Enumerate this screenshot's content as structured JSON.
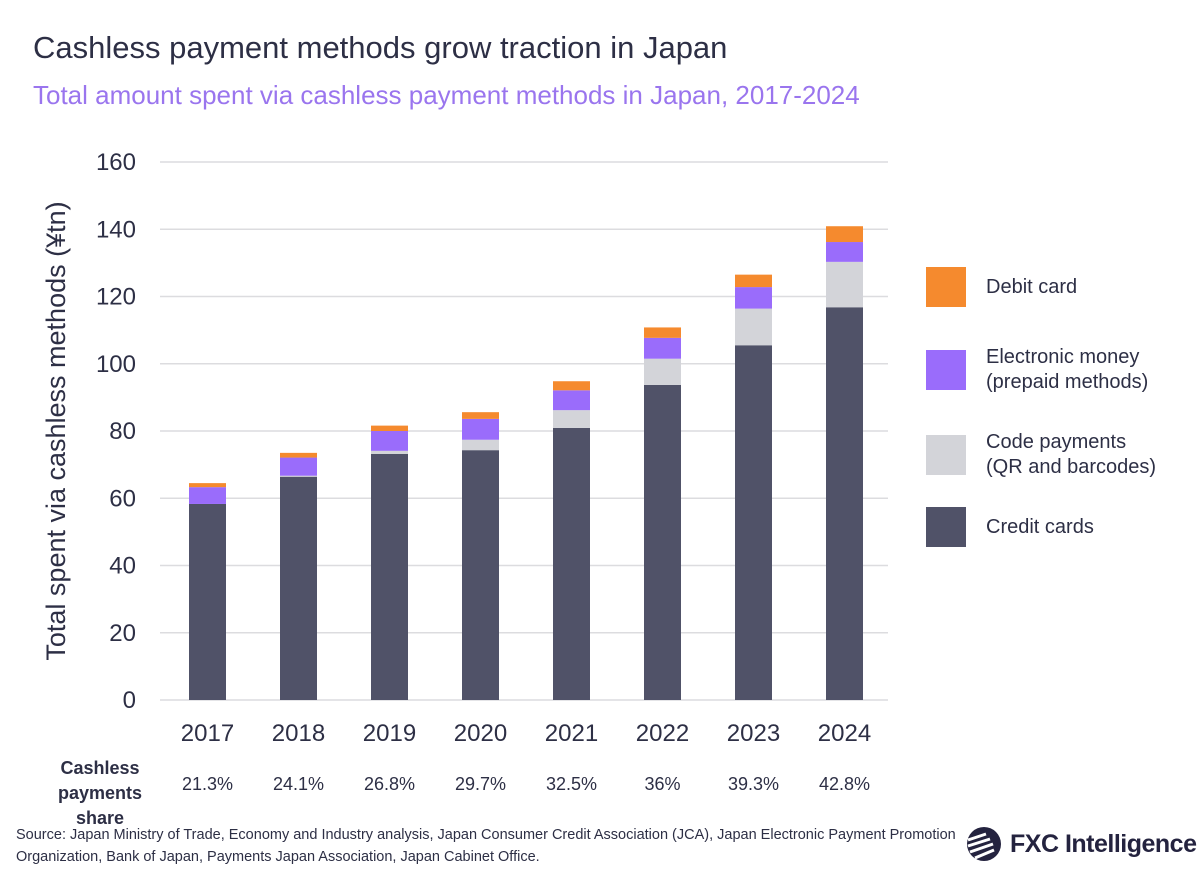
{
  "title": "Cashless payment methods grow traction in Japan",
  "subtitle": "Total amount spent via cashless payment methods in Japan, 2017-2024",
  "chart_data": {
    "type": "bar",
    "stacked": true,
    "categories": [
      "2017",
      "2018",
      "2019",
      "2020",
      "2021",
      "2022",
      "2023",
      "2024"
    ],
    "ylabel": "Total spent via cashless methods (¥tn)",
    "ylim": [
      0,
      160
    ],
    "yticks": [
      0,
      20,
      40,
      60,
      80,
      100,
      120,
      140,
      160
    ],
    "grid": true,
    "legend_position": "right",
    "series": [
      {
        "name": "Credit cards",
        "color": "#505268",
        "values": [
          58.3,
          66.4,
          73.2,
          74.3,
          80.9,
          93.7,
          105.5,
          116.8
        ]
      },
      {
        "name": "Code payments (QR and barcodes)",
        "color": "#d3d4d9",
        "values": [
          0,
          0.3,
          0.9,
          3.1,
          5.3,
          7.8,
          10.9,
          13.5
        ]
      },
      {
        "name": "Electronic money (prepaid methods)",
        "color": "#9a6cfb",
        "values": [
          5.0,
          5.4,
          5.9,
          6.2,
          5.9,
          6.2,
          6.4,
          5.9
        ]
      },
      {
        "name": "Debit card",
        "color": "#f58a2e",
        "values": [
          1.2,
          1.4,
          1.6,
          2.0,
          2.7,
          3.1,
          3.7,
          4.7
        ]
      }
    ]
  },
  "legend": [
    {
      "lines": [
        "Debit card"
      ],
      "color": "#f58a2e"
    },
    {
      "lines": [
        "Electronic money",
        "(prepaid methods)"
      ],
      "color": "#9a6cfb"
    },
    {
      "lines": [
        "Code payments",
        "(QR and barcodes)"
      ],
      "color": "#d3d4d9"
    },
    {
      "lines": [
        "Credit cards"
      ],
      "color": "#505268"
    }
  ],
  "share": {
    "label_lines": [
      "Cashless",
      "payments share"
    ],
    "values": [
      "21.3%",
      "24.1%",
      "26.8%",
      "29.7%",
      "32.5%",
      "36%",
      "39.3%",
      "42.8%"
    ]
  },
  "source": "Source: Japan Ministry of Trade, Economy and Industry analysis, Japan Consumer Credit Association (JCA), Japan Electronic Payment Promotion Organization, Bank of Japan, Payments Japan Association, Japan Cabinet Office.",
  "logo": "FXC Intelligence"
}
